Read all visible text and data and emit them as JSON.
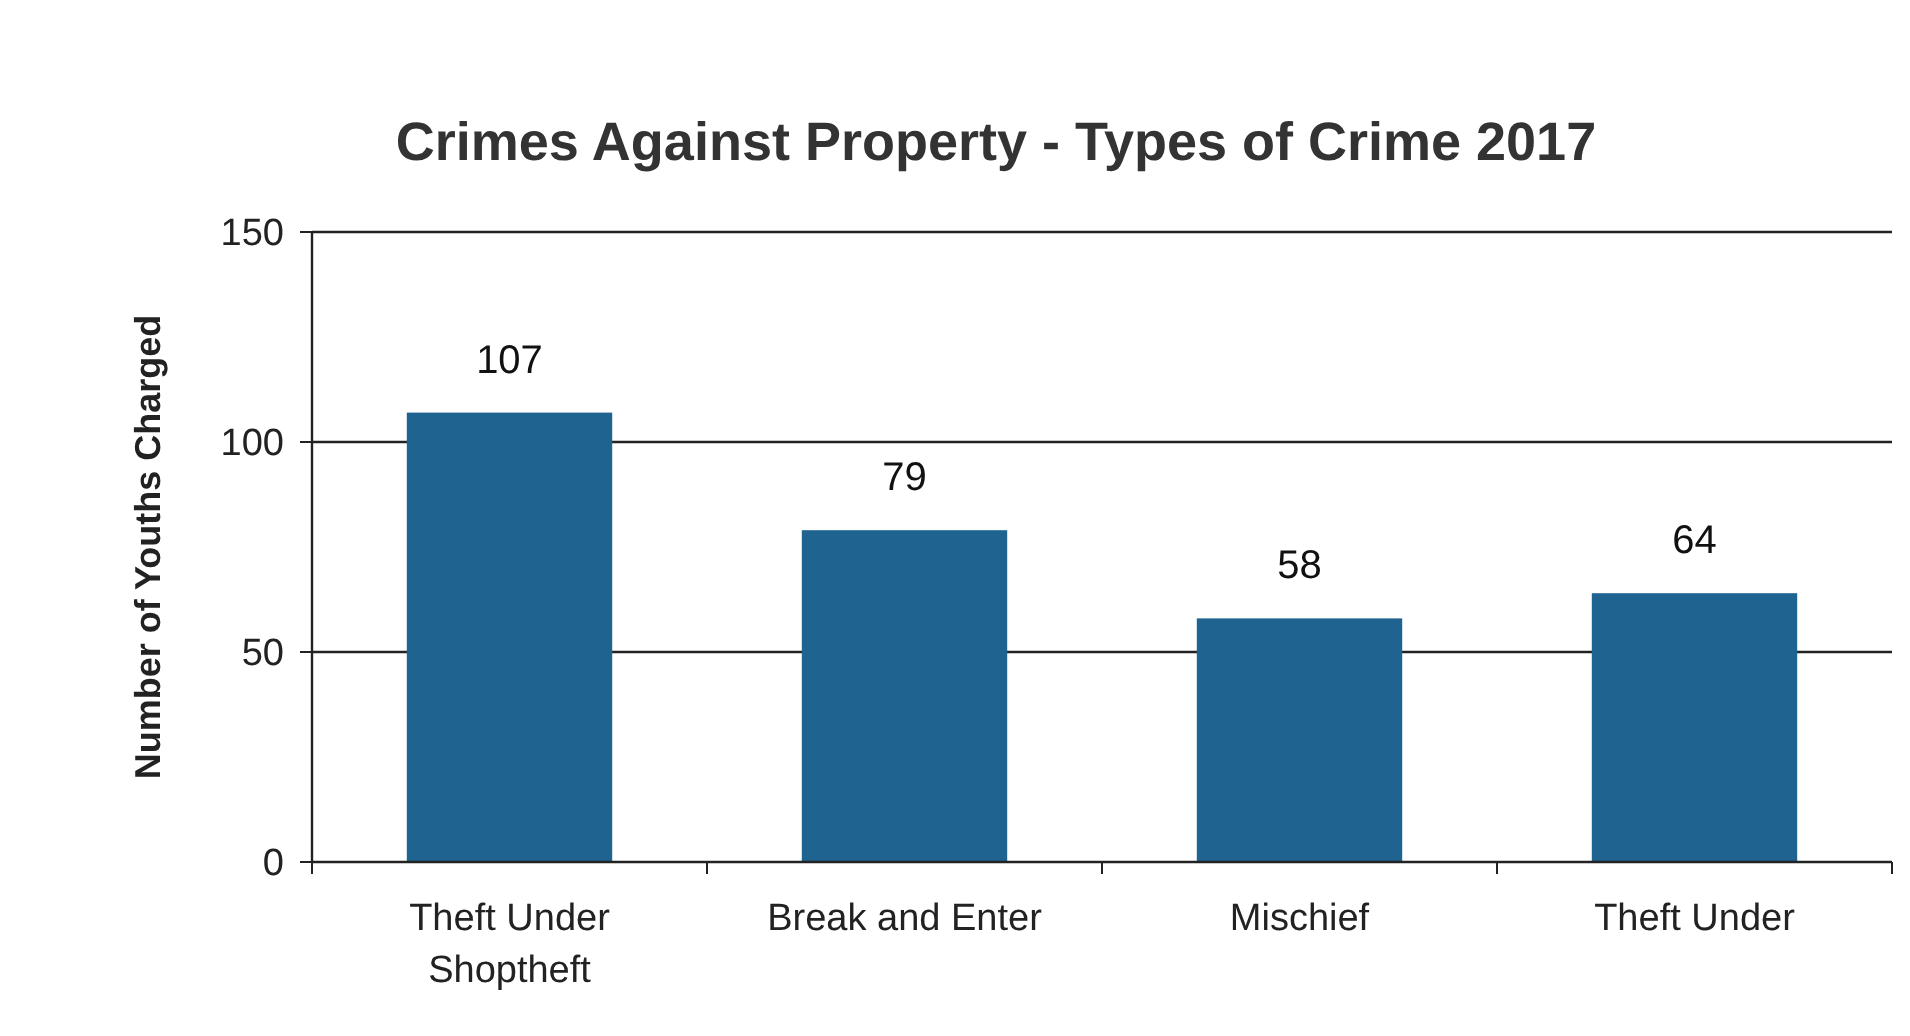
{
  "chart_data": {
    "type": "bar",
    "title": "Crimes Against Property - Types of Crime 2017",
    "ylabel": "Number of Youths Charged",
    "categories": [
      "Theft Under\nShoptheft",
      "Break and Enter",
      "Mischief",
      "Theft Under"
    ],
    "values": [
      107,
      79,
      58,
      64
    ],
    "color": "#1f6391",
    "ylim": [
      0,
      150
    ],
    "yticks": [
      0,
      50,
      100,
      150
    ],
    "grid": "y",
    "data_labels": true
  }
}
